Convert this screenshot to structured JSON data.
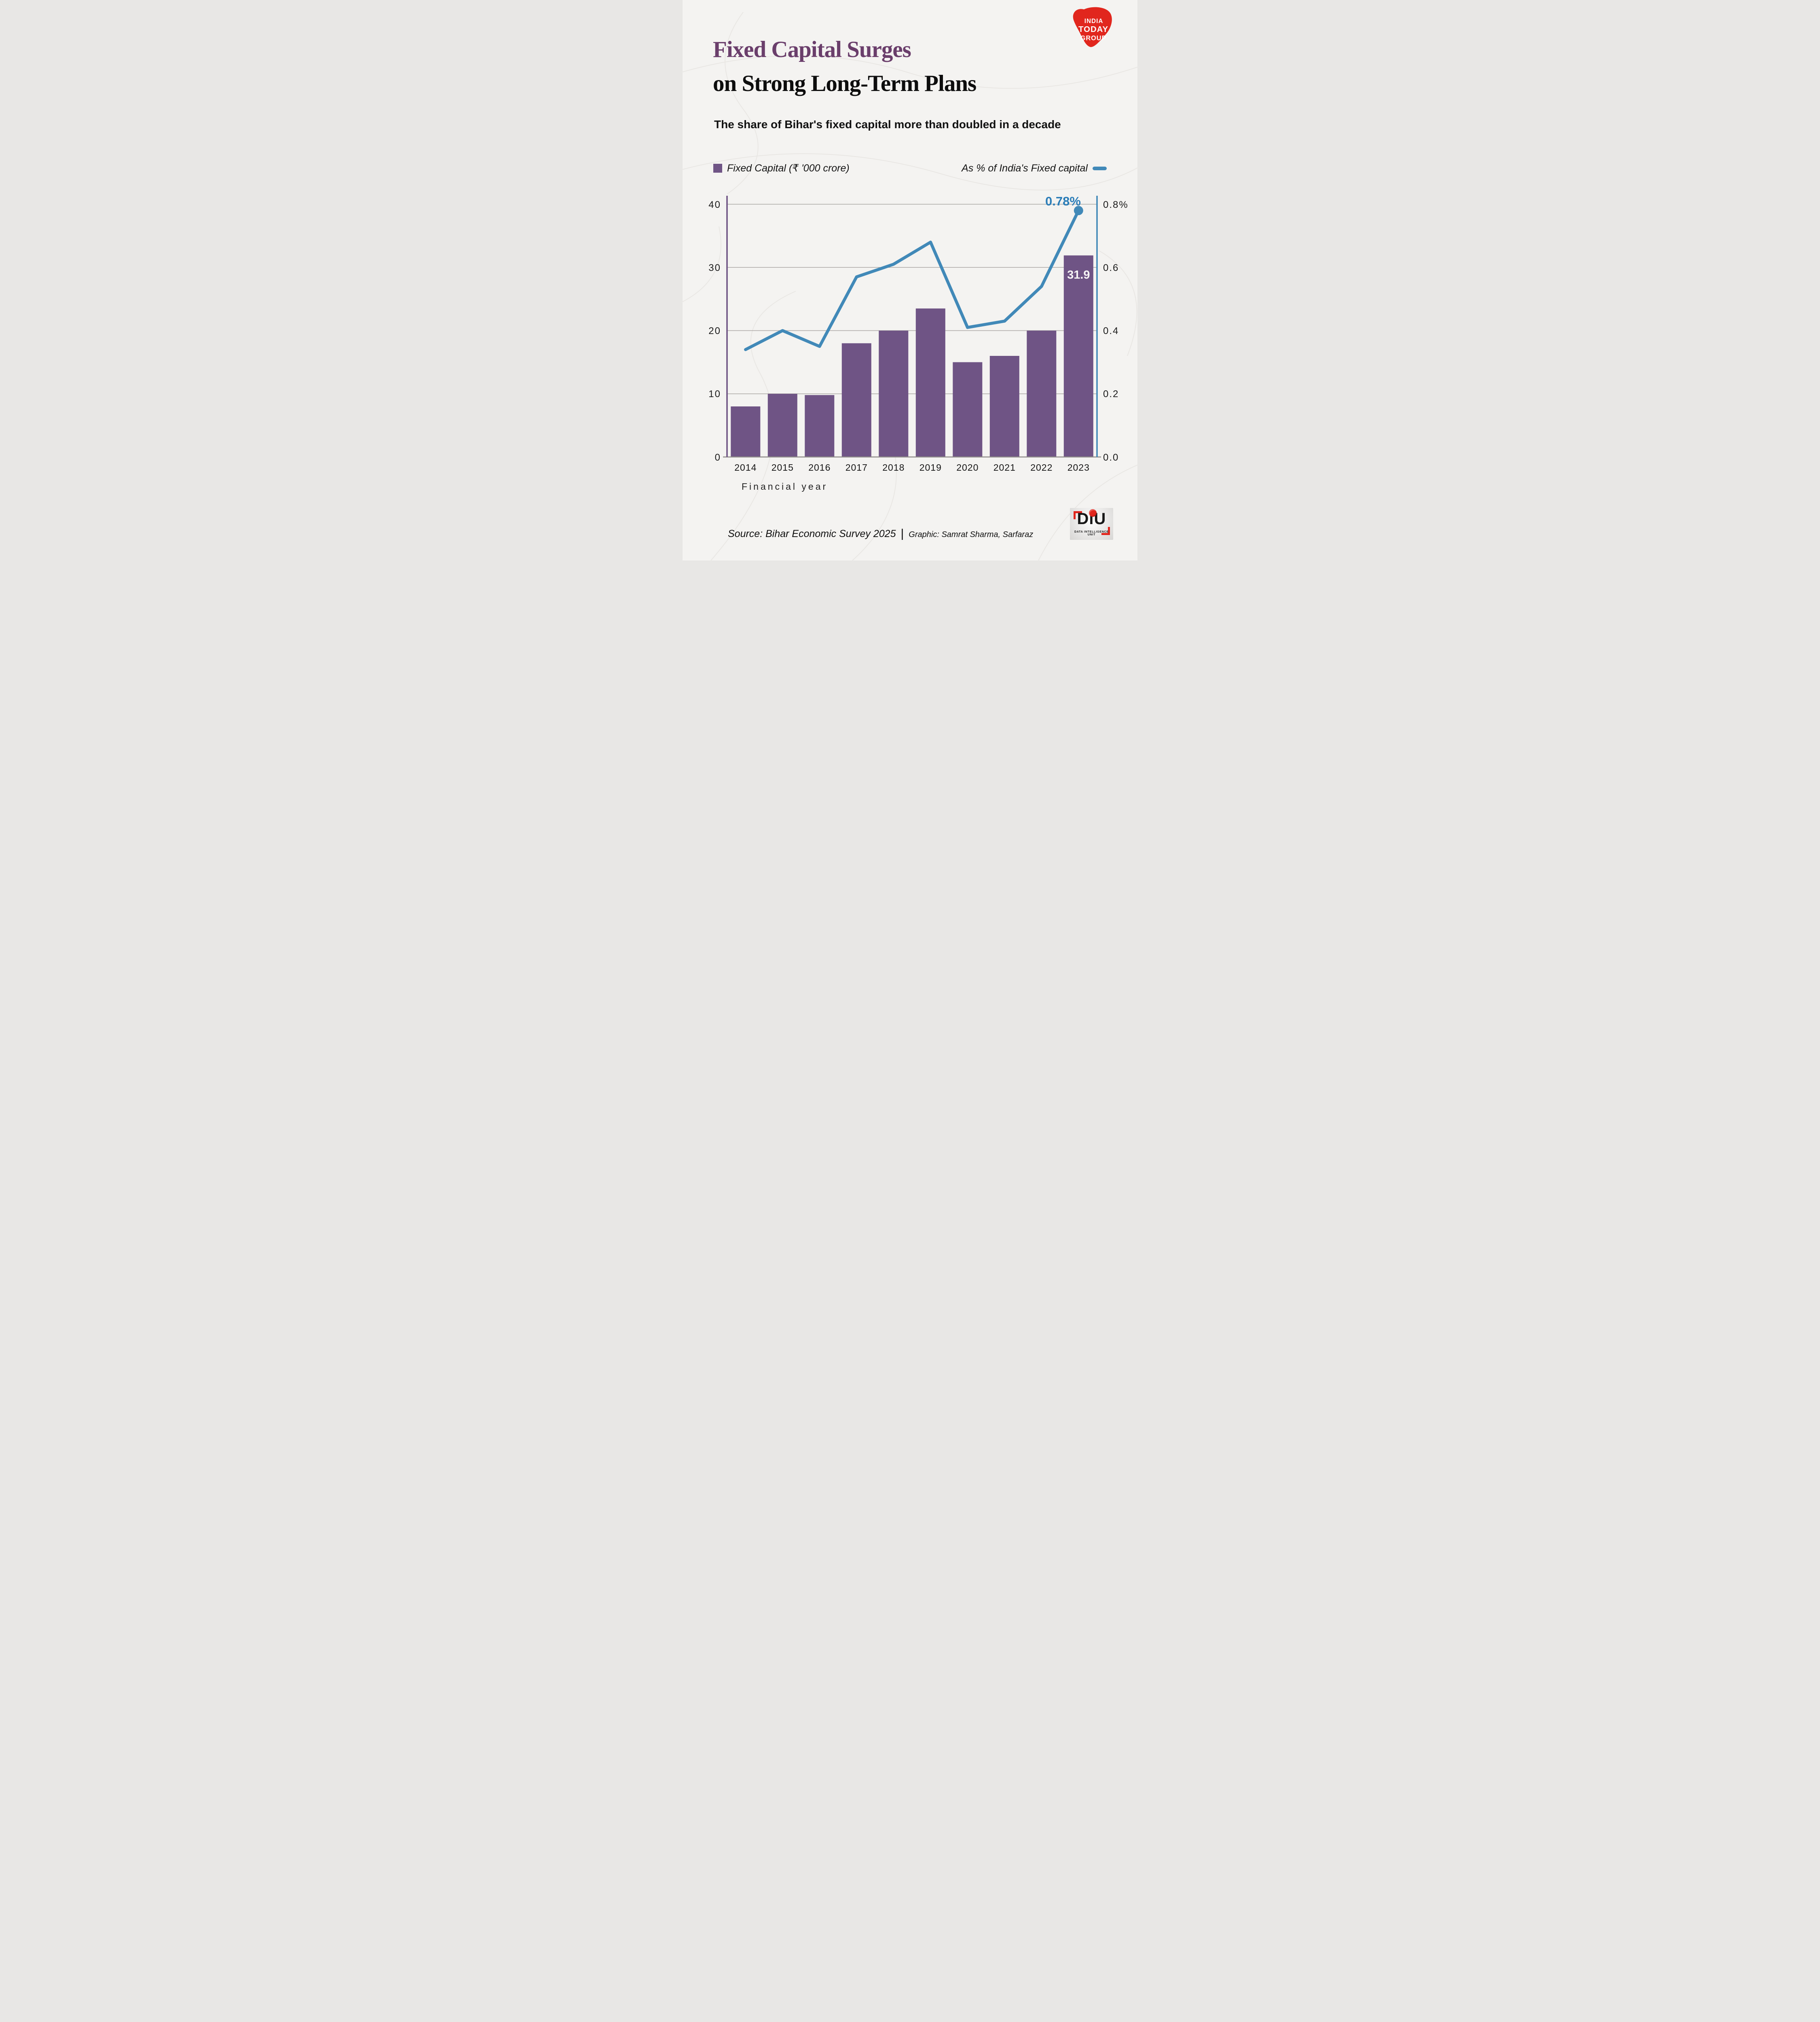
{
  "page": {
    "background": "#f4f3f1"
  },
  "brand_logo": {
    "lines": [
      "INDIA",
      "TODAY",
      "GROUP"
    ]
  },
  "header": {
    "title_line1": "Fixed Capital Surges",
    "title_line2": "on Strong Long-Term Plans",
    "subtitle": "The share of Bihar's fixed capital more than doubled in a decade"
  },
  "legend": {
    "bar_label": "Fixed Capital (₹ '000 crore)",
    "line_label": "As % of India's Fixed capital"
  },
  "chart_data": {
    "type": "bar+line",
    "categories": [
      "2014",
      "2015",
      "2016",
      "2017",
      "2018",
      "2019",
      "2020",
      "2021",
      "2022",
      "2023"
    ],
    "series": [
      {
        "name": "Fixed Capital (₹ '000 crore)",
        "type": "bar",
        "axis": "left",
        "values": [
          8,
          10,
          9.8,
          18,
          20,
          23.5,
          15,
          16,
          20,
          31.9
        ]
      },
      {
        "name": "As % of India's Fixed capital",
        "type": "line",
        "axis": "right",
        "values": [
          0.34,
          0.4,
          0.35,
          0.57,
          0.61,
          0.68,
          0.41,
          0.43,
          0.54,
          0.78
        ]
      }
    ],
    "left_axis": {
      "range": [
        0,
        40
      ],
      "ticks": [
        "0",
        "10",
        "20",
        "30",
        "40"
      ]
    },
    "right_axis": {
      "range": [
        0,
        0.8
      ],
      "ticks": [
        "0.0",
        "0.2",
        "0.4",
        "0.6",
        "0.8%"
      ]
    },
    "xlabel": "Financial year",
    "grid": "horizontal",
    "legend_position": "top",
    "annotations": {
      "line_end_label": "0.78%",
      "last_bar_label": "31.9"
    },
    "colors": {
      "bar": "#6f5485",
      "line": "#4189b8",
      "title_accent": "#6a3e6b",
      "grid": "#aaa7a4",
      "logo_red": "#e1261d"
    }
  },
  "footer": {
    "source": "Source: Bihar Economic Survey 2025",
    "separator": "|",
    "credit": "Graphic: Samrat Sharma, Sarfaraz",
    "diu": {
      "wordmark": "DiU",
      "tagline": "DATA INTELLIGENCE UNIT"
    }
  }
}
